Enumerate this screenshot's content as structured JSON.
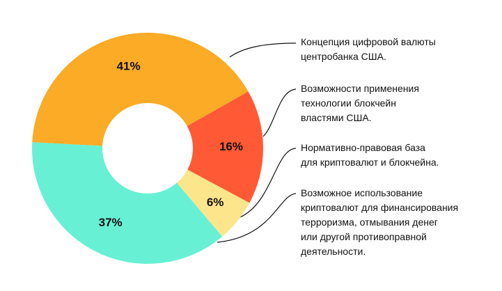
{
  "chart_data": {
    "type": "pie",
    "categories": [
      "Концепция цифровой валюты\nцентробанка США.",
      "Возможности применения\nтехнологии блокчейн\nвластями США.",
      "Нормативно-правовая база\nдля криптовалют и блокчейна.",
      "Возможное использование\nкриптовалют для финансирования\nтерроризма, отмывания денег\nили другой противоправной\nдеятельности."
    ],
    "values": [
      41,
      16,
      6,
      37
    ],
    "value_labels": [
      "41%",
      "16%",
      "6%",
      "37%"
    ],
    "colors": [
      "#fbab26",
      "#ff5a35",
      "#fde58c",
      "#68f0d4"
    ]
  }
}
